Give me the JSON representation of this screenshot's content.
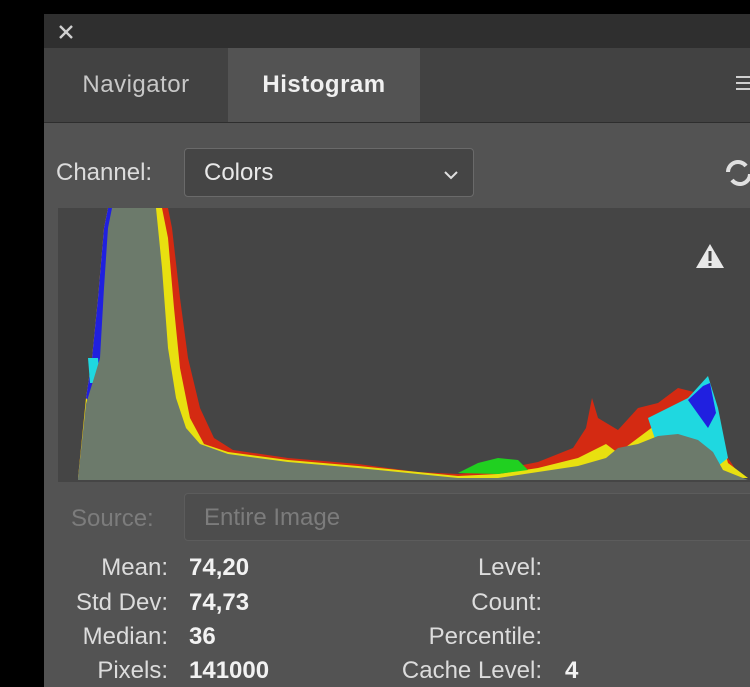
{
  "tabs": [
    "Navigator",
    "Histogram"
  ],
  "channel": {
    "label": "Channel:",
    "value": "Colors"
  },
  "source": {
    "label": "Source:",
    "value": "Entire Image"
  },
  "stats": {
    "left": [
      {
        "label": "Mean:",
        "value": "74,20"
      },
      {
        "label": "Std Dev:",
        "value": "74,73"
      },
      {
        "label": "Median:",
        "value": "36"
      },
      {
        "label": "Pixels:",
        "value": "141000"
      }
    ],
    "right": [
      {
        "label": "Level:",
        "value": ""
      },
      {
        "label": "Count:",
        "value": ""
      },
      {
        "label": "Percentile:",
        "value": ""
      },
      {
        "label": "Cache Level:",
        "value": "4"
      }
    ]
  }
}
